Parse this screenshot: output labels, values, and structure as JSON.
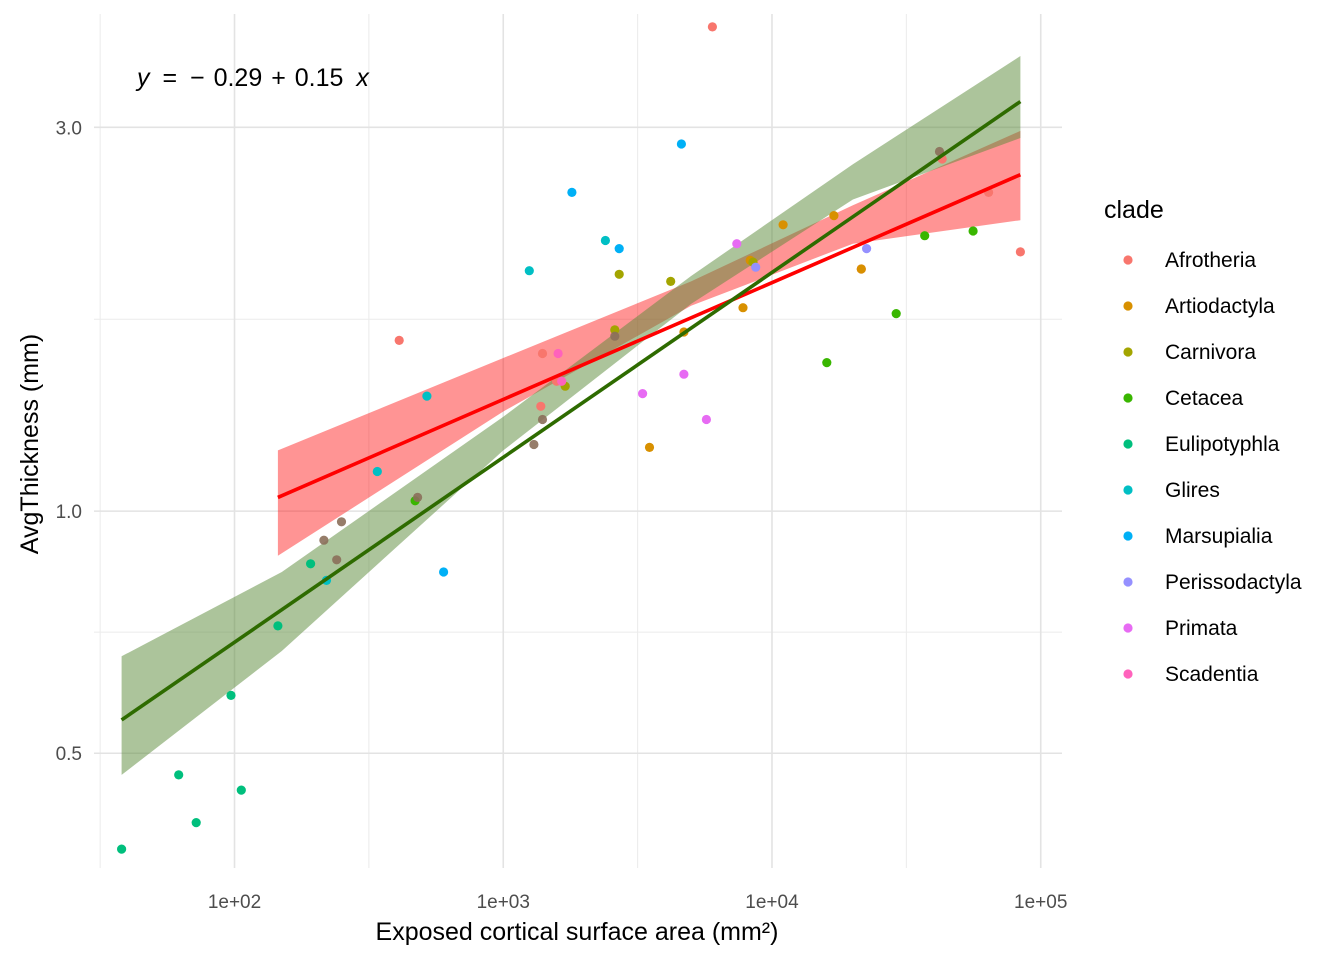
{
  "chart_data": {
    "type": "scatter",
    "xlabel": "Exposed cortical surface area (mm²)",
    "ylabel": "AvgThickness (mm)",
    "x_scale": "log10",
    "y_scale": "log10",
    "xlim": [
      30,
      120000
    ],
    "ylim": [
      0.36,
      4.15
    ],
    "x_ticks": [
      {
        "value": 100,
        "label": "1e+02"
      },
      {
        "value": 1000,
        "label": "1e+03"
      },
      {
        "value": 10000,
        "label": "1e+04"
      },
      {
        "value": 100000,
        "label": "1e+05"
      }
    ],
    "y_ticks": [
      {
        "value": 0.5,
        "label": "0.5"
      },
      {
        "value": 1.0,
        "label": "1.0"
      },
      {
        "value": 3.0,
        "label": "3.0"
      }
    ],
    "grid": true,
    "annotation": {
      "y": "y",
      "eq": "=",
      "minus": "−",
      "c0": "0.29",
      "plus": "+",
      "c1": "0.15",
      "x": "x"
    },
    "legend": {
      "title": "clade",
      "position": "right"
    },
    "series": [
      {
        "name": "Afrotheria",
        "color": "#F8766D",
        "points": [
          [
            410,
            1.63
          ],
          [
            1400,
            1.57
          ],
          [
            1380,
            1.35
          ],
          [
            1580,
            1.45
          ],
          [
            6000,
            4.0
          ],
          [
            84000,
            2.1
          ],
          [
            43000,
            2.74
          ],
          [
            64000,
            2.49
          ],
          [
            21500,
            2.0
          ]
        ]
      },
      {
        "name": "Artiodactyla",
        "color": "#D89000",
        "points": [
          [
            3500,
            1.2
          ],
          [
            4700,
            1.67
          ],
          [
            7800,
            1.79
          ],
          [
            8300,
            2.05
          ],
          [
            11000,
            2.27
          ],
          [
            17000,
            2.33
          ],
          [
            21500,
            2.0
          ]
        ]
      },
      {
        "name": "Carnivora",
        "color": "#A3A500",
        "points": [
          [
            2700,
            1.97
          ],
          [
            4200,
            1.93
          ],
          [
            8500,
            2.04
          ],
          [
            1700,
            1.43
          ],
          [
            2600,
            1.68
          ]
        ]
      },
      {
        "name": "Cetacea",
        "color": "#39B600",
        "points": [
          [
            16000,
            1.53
          ],
          [
            29000,
            1.76
          ],
          [
            37000,
            2.2
          ],
          [
            56000,
            2.23
          ],
          [
            470,
            1.03
          ]
        ]
      },
      {
        "name": "Eulipotyphla",
        "color": "#00BF7D",
        "points": [
          [
            38,
            0.38
          ],
          [
            62,
            0.47
          ],
          [
            72,
            0.41
          ],
          [
            97,
            0.59
          ],
          [
            106,
            0.45
          ],
          [
            145,
            0.72
          ],
          [
            192,
            0.86
          ]
        ]
      },
      {
        "name": "Glires",
        "color": "#00BFC4",
        "points": [
          [
            1250,
            1.99
          ],
          [
            520,
            1.39
          ],
          [
            2400,
            2.17
          ],
          [
            220,
            0.82
          ],
          [
            340,
            1.12
          ]
        ]
      },
      {
        "name": "Marsupialia",
        "color": "#00B0F6",
        "points": [
          [
            1800,
            2.49
          ],
          [
            2700,
            2.12
          ],
          [
            4600,
            2.86
          ],
          [
            600,
            0.84
          ]
        ]
      },
      {
        "name": "Perissodactyla",
        "color": "#9590FF",
        "points": [
          [
            22500,
            2.12
          ],
          [
            8700,
            2.01
          ]
        ]
      },
      {
        "name": "Primata",
        "color": "#E76BF3",
        "points": [
          [
            3300,
            1.4
          ],
          [
            4700,
            1.48
          ],
          [
            5700,
            1.3
          ],
          [
            7400,
            2.15
          ]
        ]
      },
      {
        "name": "Scadentia",
        "color": "#FF62BC",
        "points": [
          [
            1600,
            1.57
          ],
          [
            1650,
            1.45
          ]
        ]
      }
    ],
    "overlay_points": [
      {
        "color": "#8B6F5A",
        "points": [
          [
            215,
            0.92
          ],
          [
            240,
            0.87
          ],
          [
            250,
            0.97
          ],
          [
            480,
            1.04
          ],
          [
            1300,
            1.21
          ],
          [
            1400,
            1.3
          ],
          [
            2600,
            1.65
          ],
          [
            42000,
            2.8
          ]
        ]
      }
    ],
    "fits": [
      {
        "color": "#FF0000",
        "band_color": "#FF0000",
        "band_opacity": 0.42,
        "line": [
          [
            145,
            1.04
          ],
          [
            84000,
            2.62
          ]
        ],
        "band": {
          "x": [
            145,
            1000,
            5000,
            20000,
            84000
          ],
          "upper": [
            1.19,
            1.55,
            1.93,
            2.4,
            2.97
          ],
          "lower": [
            0.88,
            1.33,
            1.8,
            2.15,
            2.3
          ]
        }
      },
      {
        "color": "#2E6B00",
        "band_color": "#5A8A38",
        "band_opacity": 0.5,
        "line": [
          [
            38,
            0.55
          ],
          [
            84000,
            3.23
          ]
        ],
        "band": {
          "x": [
            38,
            150,
            1000,
            5000,
            20000,
            84000
          ],
          "upper": [
            0.66,
            0.84,
            1.31,
            1.96,
            2.7,
            3.68
          ],
          "lower": [
            0.47,
            0.67,
            1.19,
            1.81,
            2.44,
            2.91
          ]
        }
      }
    ]
  }
}
